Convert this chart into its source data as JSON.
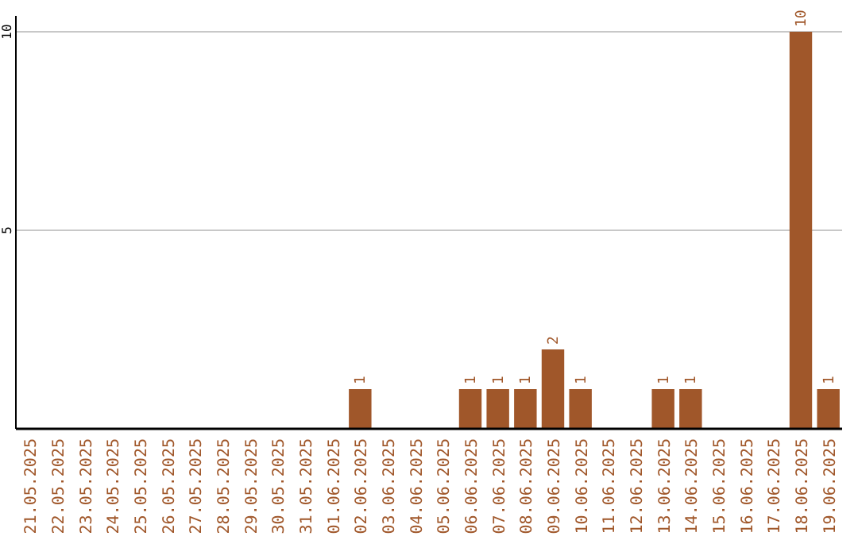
{
  "chart_data": {
    "type": "bar",
    "categories": [
      "21.05.2025",
      "22.05.2025",
      "23.05.2025",
      "24.05.2025",
      "25.05.2025",
      "26.05.2025",
      "27.05.2025",
      "28.05.2025",
      "29.05.2025",
      "30.05.2025",
      "31.05.2025",
      "01.06.2025",
      "02.06.2025",
      "03.06.2025",
      "04.06.2025",
      "05.06.2025",
      "06.06.2025",
      "07.06.2025",
      "08.06.2025",
      "09.06.2025",
      "10.06.2025",
      "11.06.2025",
      "12.06.2025",
      "13.06.2025",
      "14.06.2025",
      "15.06.2025",
      "16.06.2025",
      "17.06.2025",
      "18.06.2025",
      "19.06.2025"
    ],
    "values": [
      0,
      0,
      0,
      0,
      0,
      0,
      0,
      0,
      0,
      0,
      0,
      0,
      1,
      0,
      0,
      0,
      1,
      1,
      1,
      2,
      1,
      0,
      0,
      1,
      1,
      0,
      0,
      0,
      10,
      1
    ],
    "value_labels": [
      null,
      null,
      null,
      null,
      null,
      null,
      null,
      null,
      null,
      null,
      null,
      null,
      "1",
      null,
      null,
      null,
      "1",
      "1",
      "1",
      "2",
      "1",
      null,
      null,
      "1",
      "1",
      null,
      null,
      null,
      "10",
      "1"
    ],
    "color": "#a0572a",
    "ylim": [
      0,
      10.4
    ],
    "yticks": [
      5,
      10
    ],
    "grid": "y"
  }
}
